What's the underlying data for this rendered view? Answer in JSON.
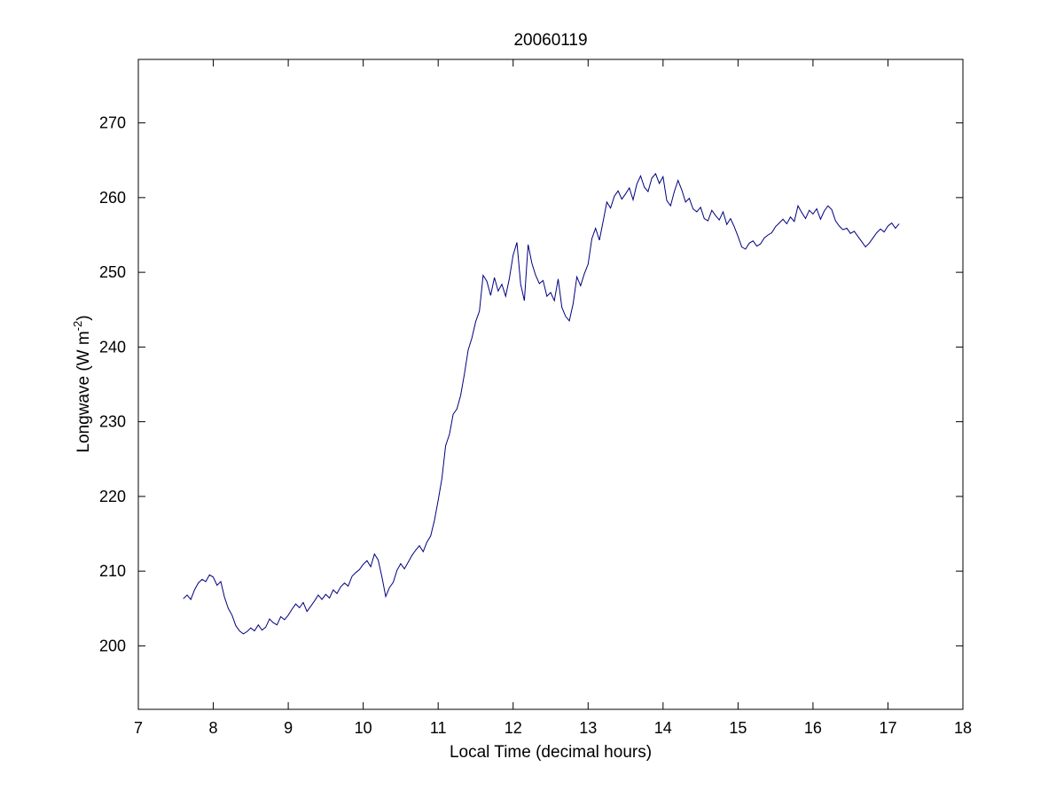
{
  "chart_data": {
    "type": "line",
    "title": "20060119",
    "xlabel": "Local Time (decimal hours)",
    "ylabel": "Longwave (W m",
    "ylabel_exponent": "-2",
    "ylabel_suffix": ")",
    "xlim": [
      7,
      18
    ],
    "ylim": [
      191.5,
      278.5
    ],
    "x_ticks": [
      7,
      8,
      9,
      10,
      11,
      12,
      13,
      14,
      15,
      16,
      17,
      18
    ],
    "y_ticks": [
      200,
      210,
      220,
      230,
      240,
      250,
      260,
      270
    ],
    "grid": false,
    "legend": "none",
    "line_color": "#00007f",
    "series": [
      {
        "points": [
          [
            7.6,
            206.3
          ],
          [
            7.65,
            206.8
          ],
          [
            7.7,
            206.2
          ],
          [
            7.75,
            207.5
          ],
          [
            7.8,
            208.4
          ],
          [
            7.85,
            208.9
          ],
          [
            7.9,
            208.6
          ],
          [
            7.95,
            209.5
          ],
          [
            8.0,
            209.2
          ],
          [
            8.05,
            208.1
          ],
          [
            8.1,
            208.6
          ],
          [
            8.15,
            206.5
          ],
          [
            8.2,
            205.0
          ],
          [
            8.25,
            204.1
          ],
          [
            8.3,
            202.7
          ],
          [
            8.35,
            202.0
          ],
          [
            8.4,
            201.6
          ],
          [
            8.45,
            201.9
          ],
          [
            8.5,
            202.4
          ],
          [
            8.55,
            202.0
          ],
          [
            8.6,
            202.8
          ],
          [
            8.65,
            202.1
          ],
          [
            8.7,
            202.5
          ],
          [
            8.75,
            203.6
          ],
          [
            8.8,
            203.1
          ],
          [
            8.85,
            202.8
          ],
          [
            8.9,
            203.9
          ],
          [
            8.95,
            203.5
          ],
          [
            9.0,
            204.1
          ],
          [
            9.05,
            204.9
          ],
          [
            9.1,
            205.6
          ],
          [
            9.15,
            205.1
          ],
          [
            9.2,
            205.8
          ],
          [
            9.25,
            204.6
          ],
          [
            9.3,
            205.3
          ],
          [
            9.35,
            206.0
          ],
          [
            9.4,
            206.8
          ],
          [
            9.45,
            206.2
          ],
          [
            9.5,
            206.9
          ],
          [
            9.55,
            206.4
          ],
          [
            9.6,
            207.5
          ],
          [
            9.65,
            207.0
          ],
          [
            9.7,
            207.9
          ],
          [
            9.75,
            208.4
          ],
          [
            9.8,
            208.0
          ],
          [
            9.85,
            209.3
          ],
          [
            9.9,
            209.8
          ],
          [
            9.95,
            210.2
          ],
          [
            10.0,
            210.9
          ],
          [
            10.05,
            211.4
          ],
          [
            10.1,
            210.6
          ],
          [
            10.15,
            212.3
          ],
          [
            10.2,
            211.5
          ],
          [
            10.25,
            209.2
          ],
          [
            10.3,
            206.6
          ],
          [
            10.35,
            207.8
          ],
          [
            10.4,
            208.5
          ],
          [
            10.45,
            210.1
          ],
          [
            10.5,
            211.0
          ],
          [
            10.55,
            210.3
          ],
          [
            10.6,
            211.2
          ],
          [
            10.65,
            212.1
          ],
          [
            10.7,
            212.8
          ],
          [
            10.75,
            213.4
          ],
          [
            10.8,
            212.6
          ],
          [
            10.85,
            213.9
          ],
          [
            10.9,
            214.7
          ],
          [
            10.95,
            216.8
          ],
          [
            11.0,
            219.5
          ],
          [
            11.05,
            222.4
          ],
          [
            11.1,
            226.8
          ],
          [
            11.15,
            228.3
          ],
          [
            11.2,
            231.0
          ],
          [
            11.25,
            231.7
          ],
          [
            11.3,
            233.5
          ],
          [
            11.35,
            236.4
          ],
          [
            11.4,
            239.6
          ],
          [
            11.45,
            241.2
          ],
          [
            11.5,
            243.4
          ],
          [
            11.55,
            244.8
          ],
          [
            11.6,
            249.6
          ],
          [
            11.65,
            248.8
          ],
          [
            11.7,
            246.9
          ],
          [
            11.75,
            249.3
          ],
          [
            11.8,
            247.5
          ],
          [
            11.85,
            248.4
          ],
          [
            11.9,
            246.8
          ],
          [
            11.95,
            249.2
          ],
          [
            12.0,
            252.3
          ],
          [
            12.05,
            254.0
          ],
          [
            12.1,
            248.4
          ],
          [
            12.15,
            246.2
          ],
          [
            12.2,
            253.7
          ],
          [
            12.25,
            251.2
          ],
          [
            12.3,
            249.6
          ],
          [
            12.35,
            248.5
          ],
          [
            12.4,
            248.9
          ],
          [
            12.45,
            246.8
          ],
          [
            12.5,
            247.3
          ],
          [
            12.55,
            246.2
          ],
          [
            12.6,
            249.1
          ],
          [
            12.65,
            245.3
          ],
          [
            12.7,
            244.1
          ],
          [
            12.75,
            243.5
          ],
          [
            12.8,
            245.8
          ],
          [
            12.85,
            249.4
          ],
          [
            12.9,
            248.2
          ],
          [
            12.95,
            249.8
          ],
          [
            13.0,
            251.1
          ],
          [
            13.05,
            254.5
          ],
          [
            13.1,
            255.9
          ],
          [
            13.15,
            254.3
          ],
          [
            13.2,
            256.8
          ],
          [
            13.25,
            259.4
          ],
          [
            13.3,
            258.6
          ],
          [
            13.35,
            260.2
          ],
          [
            13.4,
            260.9
          ],
          [
            13.45,
            259.8
          ],
          [
            13.5,
            260.5
          ],
          [
            13.55,
            261.3
          ],
          [
            13.6,
            259.7
          ],
          [
            13.65,
            261.8
          ],
          [
            13.7,
            262.9
          ],
          [
            13.75,
            261.4
          ],
          [
            13.8,
            260.8
          ],
          [
            13.85,
            262.6
          ],
          [
            13.9,
            263.2
          ],
          [
            13.95,
            261.9
          ],
          [
            14.0,
            262.8
          ],
          [
            14.05,
            259.6
          ],
          [
            14.1,
            258.9
          ],
          [
            14.15,
            260.8
          ],
          [
            14.2,
            262.3
          ],
          [
            14.25,
            261.0
          ],
          [
            14.3,
            259.4
          ],
          [
            14.35,
            259.9
          ],
          [
            14.4,
            258.5
          ],
          [
            14.45,
            258.1
          ],
          [
            14.5,
            258.7
          ],
          [
            14.55,
            257.2
          ],
          [
            14.6,
            256.9
          ],
          [
            14.65,
            258.3
          ],
          [
            14.7,
            257.6
          ],
          [
            14.75,
            257.0
          ],
          [
            14.8,
            258.1
          ],
          [
            14.85,
            256.4
          ],
          [
            14.9,
            257.2
          ],
          [
            14.95,
            256.1
          ],
          [
            15.0,
            254.8
          ],
          [
            15.05,
            253.4
          ],
          [
            15.1,
            253.1
          ],
          [
            15.15,
            253.9
          ],
          [
            15.2,
            254.2
          ],
          [
            15.25,
            253.5
          ],
          [
            15.3,
            253.8
          ],
          [
            15.35,
            254.6
          ],
          [
            15.4,
            255.0
          ],
          [
            15.45,
            255.3
          ],
          [
            15.5,
            256.1
          ],
          [
            15.55,
            256.6
          ],
          [
            15.6,
            257.1
          ],
          [
            15.65,
            256.5
          ],
          [
            15.7,
            257.4
          ],
          [
            15.75,
            256.8
          ],
          [
            15.8,
            258.9
          ],
          [
            15.85,
            258.0
          ],
          [
            15.9,
            257.2
          ],
          [
            15.95,
            258.3
          ],
          [
            16.0,
            257.8
          ],
          [
            16.05,
            258.5
          ],
          [
            16.1,
            257.1
          ],
          [
            16.15,
            258.2
          ],
          [
            16.2,
            258.9
          ],
          [
            16.25,
            258.4
          ],
          [
            16.3,
            256.9
          ],
          [
            16.35,
            256.2
          ],
          [
            16.4,
            255.7
          ],
          [
            16.45,
            255.9
          ],
          [
            16.5,
            255.2
          ],
          [
            16.55,
            255.5
          ],
          [
            16.6,
            254.8
          ],
          [
            16.65,
            254.1
          ],
          [
            16.7,
            253.4
          ],
          [
            16.75,
            253.9
          ],
          [
            16.8,
            254.6
          ],
          [
            16.85,
            255.3
          ],
          [
            16.9,
            255.8
          ],
          [
            16.95,
            255.4
          ],
          [
            17.0,
            256.2
          ],
          [
            17.05,
            256.6
          ],
          [
            17.1,
            255.9
          ],
          [
            17.15,
            256.5
          ]
        ]
      }
    ]
  }
}
